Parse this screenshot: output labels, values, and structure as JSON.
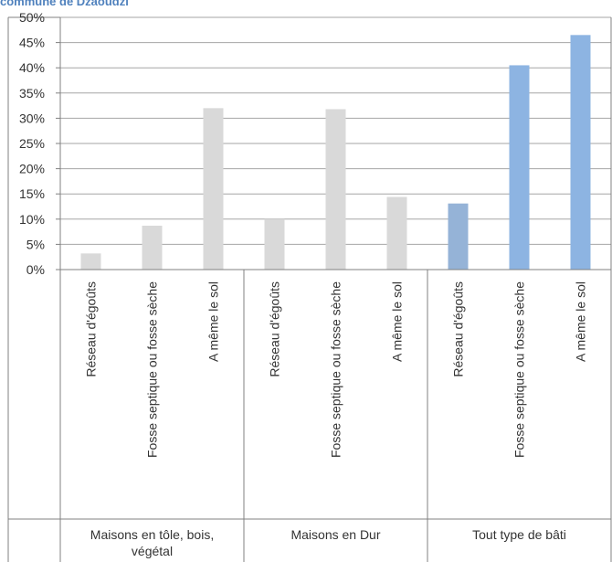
{
  "chart_data": {
    "type": "bar",
    "title": "commune de Dzaoudzi",
    "ylim": [
      0,
      50
    ],
    "y_ticks": [
      "0%",
      "5%",
      "10%",
      "15%",
      "20%",
      "25%",
      "30%",
      "35%",
      "40%",
      "45%",
      "50%"
    ],
    "y_unit": "%",
    "grid": true,
    "legend": "none",
    "groups": [
      {
        "label": "Maisons en tôle, bois, végétal",
        "categories": [
          "Réseau d'égoûts",
          "Fosse septique ou fosse sèche",
          "A même le sol"
        ],
        "values": [
          3.2,
          8.7,
          32.0
        ],
        "color": "#d9d9d9"
      },
      {
        "label": "Maisons en Dur",
        "categories": [
          "Réseau d'égoûts",
          "Fosse septique ou fosse sèche",
          "A même le sol"
        ],
        "values": [
          10.0,
          31.8,
          14.4
        ],
        "color": "#d9d9d9"
      },
      {
        "label": "Tout type de bâti",
        "categories": [
          "Réseau d'égoûts",
          "Fosse septique ou fosse sèche",
          "A même le sol"
        ],
        "values": [
          13.1,
          40.5,
          46.5
        ],
        "colors": [
          "#95b3d7",
          "#8db4e2",
          "#8db4e2"
        ]
      }
    ]
  }
}
